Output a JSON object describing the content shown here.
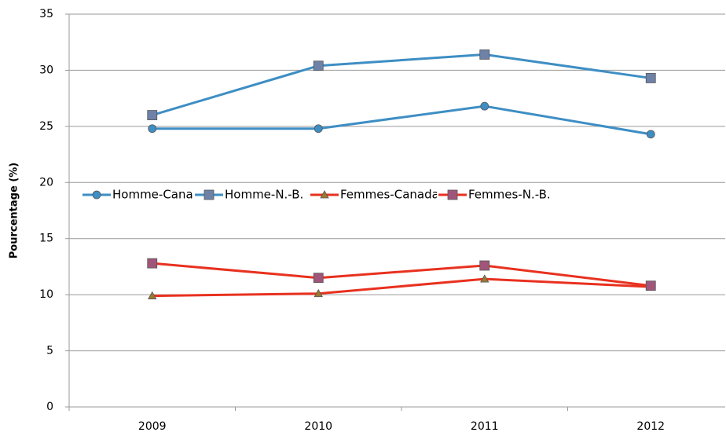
{
  "chart_data": {
    "type": "line",
    "categories": [
      "2009",
      "2010",
      "2011",
      "2012"
    ],
    "series": [
      {
        "name": "Homme-Canada",
        "color": "#3e8ec4",
        "marker": "circle",
        "marker_color": "#3e8ec4",
        "values": [
          24.8,
          24.8,
          26.8,
          24.3
        ]
      },
      {
        "name": "Homme-N.-B.",
        "color": "#3e8ec4",
        "marker": "square",
        "marker_color": "#6e82a8",
        "values": [
          26.0,
          30.4,
          31.4,
          29.3
        ]
      },
      {
        "name": "Femmes-Canada",
        "color": "#e8311f",
        "marker": "triangle",
        "marker_color": "#9a7a30",
        "values": [
          9.9,
          10.1,
          11.4,
          10.7
        ]
      },
      {
        "name": "Femmes-N.-B.",
        "color": "#e8311f",
        "marker": "square",
        "marker_color": "#a0567a",
        "values": [
          12.8,
          11.5,
          12.6,
          10.8
        ]
      }
    ],
    "ylabel": "Pourcentage (%)",
    "ylim": [
      0,
      35
    ],
    "yticks": [
      0,
      5,
      10,
      15,
      20,
      25,
      30,
      35
    ],
    "grid": true,
    "legend": "center"
  }
}
